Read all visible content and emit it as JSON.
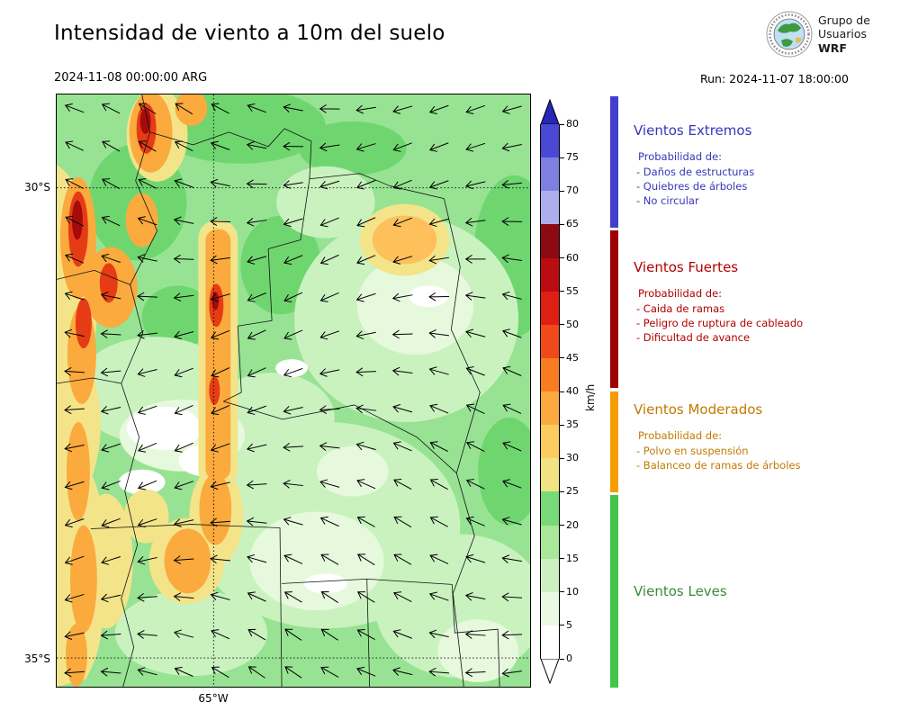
{
  "header": {
    "title": "Intensidad de viento a 10m del suelo",
    "valid_time": "2024-11-08 00:00:00 ARG",
    "run_time": "Run: 2024-11-07 18:00:00",
    "logo": {
      "line1": "Grupo de",
      "line2": "Usuarios",
      "line3": "WRF"
    }
  },
  "map": {
    "lat_labels": [
      "30°S",
      "35°S"
    ],
    "lon_label": "65°W"
  },
  "colorbar": {
    "unit": "km/h",
    "ticks": [
      0,
      5,
      10,
      15,
      20,
      25,
      30,
      35,
      40,
      45,
      50,
      55,
      60,
      65,
      70,
      75,
      80
    ],
    "segment_colors_bottom_to_top": [
      "#ffffff",
      "#e9f9e2",
      "#ccf0c2",
      "#a9e79b",
      "#77d977",
      "#f1e383",
      "#fccc60",
      "#fca93f",
      "#f87d22",
      "#f1491b",
      "#de1f14",
      "#bb0c12",
      "#8c0a12",
      "#aeaeec",
      "#7f7fe2",
      "#4949d3"
    ],
    "over_color": "#2626b8",
    "under_color": "#ffffff"
  },
  "legend": {
    "sections": [
      {
        "title": "Vientos Extremos",
        "color": "#3a35b8",
        "bar_color": "#4040cc",
        "prob_header": "Probabilidad de:",
        "items": [
          "- Daños de estructuras",
          "- Quiebres de árboles",
          "- No circular"
        ]
      },
      {
        "title": "Vientos Fuertes",
        "color": "#b00000",
        "bar_color": "#9e0000",
        "prob_header": "Probabilidad de:",
        "items": [
          "- Caida de ramas",
          "- Peligro de ruptura de cableado",
          "- Dificultad de avance"
        ]
      },
      {
        "title": "Vientos Moderados",
        "color": "#c27a00",
        "bar_color": "#f59d00",
        "prob_header": "Probabilidad de:",
        "items": [
          "- Polvo en suspensión",
          "- Balanceo de ramas de árboles"
        ]
      },
      {
        "title": "Vientos Leves",
        "color": "#3c8a3c",
        "bar_color": "#44c44c",
        "prob_header": "",
        "items": []
      }
    ]
  },
  "wind_field": {
    "grid_cols": 13,
    "grid_rows": 16,
    "mean_direction": "westerly"
  }
}
